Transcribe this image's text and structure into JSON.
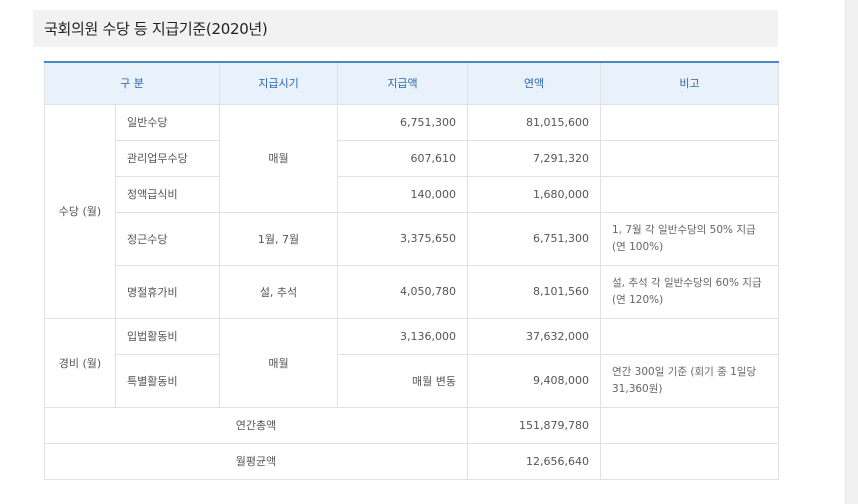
{
  "section": {
    "title": "국회의원 수당 등 지급기준(2020년)"
  },
  "table": {
    "headers": [
      "구 분",
      "지급시기",
      "지급액",
      "연액",
      "비고"
    ],
    "groups": {
      "allowance": "수당 (월)",
      "expense": "경비 (월)"
    },
    "rows": [
      {
        "name": "일반수당",
        "amount": "6,751,300",
        "annual": "81,015,600",
        "note": ""
      },
      {
        "name": "관리업무수당",
        "amount": "607,610",
        "annual": "7,291,320",
        "note": ""
      },
      {
        "name": "정액급식비",
        "amount": "140,000",
        "annual": "1,680,000",
        "note": ""
      },
      {
        "name": "정근수당",
        "timing": "1월, 7월",
        "amount": "3,375,650",
        "annual": "6,751,300",
        "note": "1, 7월 각 일반수당의 50% 지급 (연 100%)"
      },
      {
        "name": "명절휴가비",
        "timing": "설, 추석",
        "amount": "4,050,780",
        "annual": "8,101,560",
        "note": "설, 추석 각 일반수당의 60% 지급 (연 120%)"
      },
      {
        "name": "입법활동비",
        "amount": "3,136,000",
        "annual": "37,632,000",
        "note": ""
      },
      {
        "name": "특별활동비",
        "amount": "매월 변동",
        "annual": "9,408,000",
        "note": "연간 300일 기준 (회기 중 1일당 31,360원)"
      }
    ],
    "monthly_timing_1": "매월",
    "monthly_timing_2": "매월",
    "total_annual": {
      "label": "연간총액",
      "value": "151,879,780"
    },
    "monthly_avg": {
      "label": "월평균액",
      "value": "12,656,640"
    }
  }
}
